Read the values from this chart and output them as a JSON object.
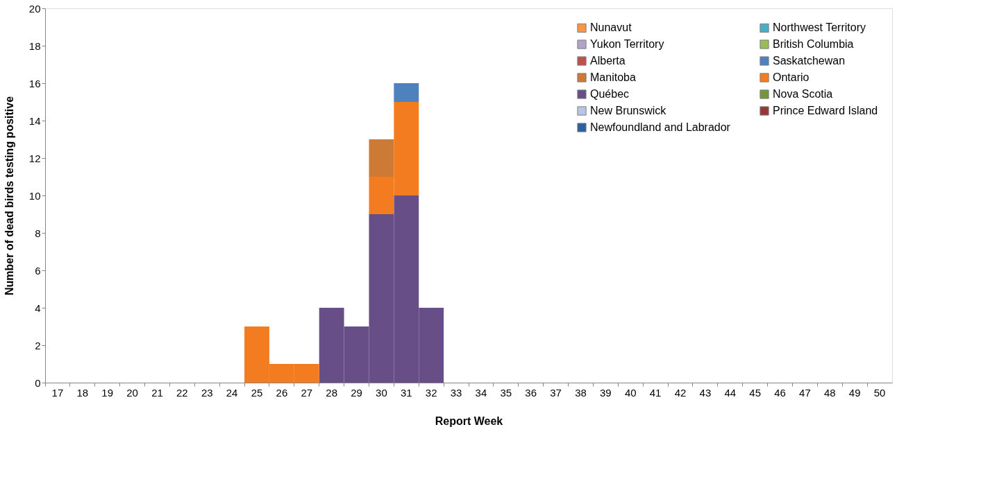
{
  "chart_data": {
    "type": "bar",
    "stacked": true,
    "xlabel": "Report Week",
    "ylabel": "Number of dead birds testing positive",
    "categories": [
      "17",
      "18",
      "19",
      "20",
      "21",
      "22",
      "23",
      "24",
      "25",
      "26",
      "27",
      "28",
      "29",
      "30",
      "31",
      "32",
      "33",
      "34",
      "35",
      "36",
      "37",
      "38",
      "39",
      "40",
      "41",
      "42",
      "43",
      "44",
      "45",
      "46",
      "47",
      "48",
      "49",
      "50"
    ],
    "ylim": [
      0,
      20
    ],
    "yticks": [
      0,
      2,
      4,
      6,
      8,
      10,
      12,
      14,
      16,
      18,
      20
    ],
    "grid": false,
    "legend": "top right",
    "series": [
      {
        "name": "Newfoundland and Labrador",
        "color": "#2c5f9e",
        "values": [
          null,
          null,
          null,
          null,
          null,
          null,
          null,
          null,
          null,
          null,
          null,
          null,
          null,
          null,
          null,
          null,
          null,
          null,
          null,
          null,
          null,
          null,
          null,
          null,
          null,
          null,
          null,
          null,
          null,
          null,
          null,
          null,
          null,
          null
        ]
      },
      {
        "name": "Prince Edward Island",
        "color": "#953735",
        "values": [
          null,
          null,
          null,
          null,
          null,
          null,
          null,
          null,
          null,
          null,
          null,
          null,
          null,
          null,
          null,
          null,
          null,
          null,
          null,
          null,
          null,
          null,
          null,
          null,
          null,
          null,
          null,
          null,
          null,
          null,
          null,
          null,
          null,
          null
        ]
      },
      {
        "name": "New Brunswick",
        "color": "#b9c5e4",
        "values": [
          null,
          null,
          null,
          null,
          null,
          null,
          null,
          null,
          null,
          null,
          null,
          null,
          null,
          null,
          null,
          null,
          null,
          null,
          null,
          null,
          null,
          null,
          null,
          null,
          null,
          null,
          null,
          null,
          null,
          null,
          null,
          null,
          null,
          null
        ]
      },
      {
        "name": "Nova Scotia",
        "color": "#77933c",
        "values": [
          null,
          null,
          null,
          null,
          null,
          null,
          null,
          null,
          null,
          null,
          null,
          null,
          null,
          null,
          null,
          null,
          null,
          null,
          null,
          null,
          null,
          null,
          null,
          null,
          null,
          null,
          null,
          null,
          null,
          null,
          null,
          null,
          null,
          null
        ]
      },
      {
        "name": "Québec",
        "color": "#674e86",
        "values": [
          null,
          null,
          null,
          null,
          null,
          null,
          null,
          null,
          null,
          null,
          null,
          4,
          3,
          9,
          10,
          4,
          null,
          null,
          null,
          null,
          null,
          null,
          null,
          null,
          null,
          null,
          null,
          null,
          null,
          null,
          null,
          null,
          null,
          null
        ]
      },
      {
        "name": "Ontario",
        "color": "#f47c20",
        "values": [
          null,
          null,
          null,
          null,
          null,
          null,
          null,
          null,
          3,
          1,
          1,
          null,
          null,
          2,
          5,
          null,
          null,
          null,
          null,
          null,
          null,
          null,
          null,
          null,
          null,
          null,
          null,
          null,
          null,
          null,
          null,
          null,
          null,
          null
        ]
      },
      {
        "name": "Manitoba",
        "color": "#cd7a36",
        "values": [
          null,
          null,
          null,
          null,
          null,
          null,
          null,
          null,
          null,
          null,
          null,
          null,
          null,
          2,
          null,
          null,
          null,
          null,
          null,
          null,
          null,
          null,
          null,
          null,
          null,
          null,
          null,
          null,
          null,
          null,
          null,
          null,
          null,
          null
        ]
      },
      {
        "name": "Saskatchewan",
        "color": "#4f81bd",
        "values": [
          null,
          null,
          null,
          null,
          null,
          null,
          null,
          null,
          null,
          null,
          null,
          null,
          null,
          null,
          1,
          null,
          null,
          null,
          null,
          null,
          null,
          null,
          null,
          null,
          null,
          null,
          null,
          null,
          null,
          null,
          null,
          null,
          null,
          null
        ]
      },
      {
        "name": "Alberta",
        "color": "#c0504d",
        "values": [
          null,
          null,
          null,
          null,
          null,
          null,
          null,
          null,
          null,
          null,
          null,
          null,
          null,
          null,
          null,
          null,
          null,
          null,
          null,
          null,
          null,
          null,
          null,
          null,
          null,
          null,
          null,
          null,
          null,
          null,
          null,
          null,
          null,
          null
        ]
      },
      {
        "name": "British Columbia",
        "color": "#9bbb59",
        "values": [
          null,
          null,
          null,
          null,
          null,
          null,
          null,
          null,
          null,
          null,
          null,
          null,
          null,
          null,
          null,
          null,
          null,
          null,
          null,
          null,
          null,
          null,
          null,
          null,
          null,
          null,
          null,
          null,
          null,
          null,
          null,
          null,
          null,
          null
        ]
      },
      {
        "name": "Yukon Territory",
        "color": "#b3a2c7",
        "values": [
          null,
          null,
          null,
          null,
          null,
          null,
          null,
          null,
          null,
          null,
          null,
          null,
          null,
          null,
          null,
          null,
          null,
          null,
          null,
          null,
          null,
          null,
          null,
          null,
          null,
          null,
          null,
          null,
          null,
          null,
          null,
          null,
          null,
          null
        ]
      },
      {
        "name": "Northwest Territory",
        "color": "#4bacc6",
        "values": [
          null,
          null,
          null,
          null,
          null,
          null,
          null,
          null,
          null,
          null,
          null,
          null,
          null,
          null,
          null,
          null,
          null,
          null,
          null,
          null,
          null,
          null,
          null,
          null,
          null,
          null,
          null,
          null,
          null,
          null,
          null,
          null,
          null,
          null
        ]
      },
      {
        "name": "Nunavut",
        "color": "#f79646",
        "values": [
          null,
          null,
          null,
          null,
          null,
          null,
          null,
          null,
          null,
          null,
          null,
          null,
          null,
          null,
          null,
          null,
          null,
          null,
          null,
          null,
          null,
          null,
          null,
          null,
          null,
          null,
          null,
          null,
          null,
          null,
          null,
          null,
          null,
          null
        ]
      }
    ]
  }
}
